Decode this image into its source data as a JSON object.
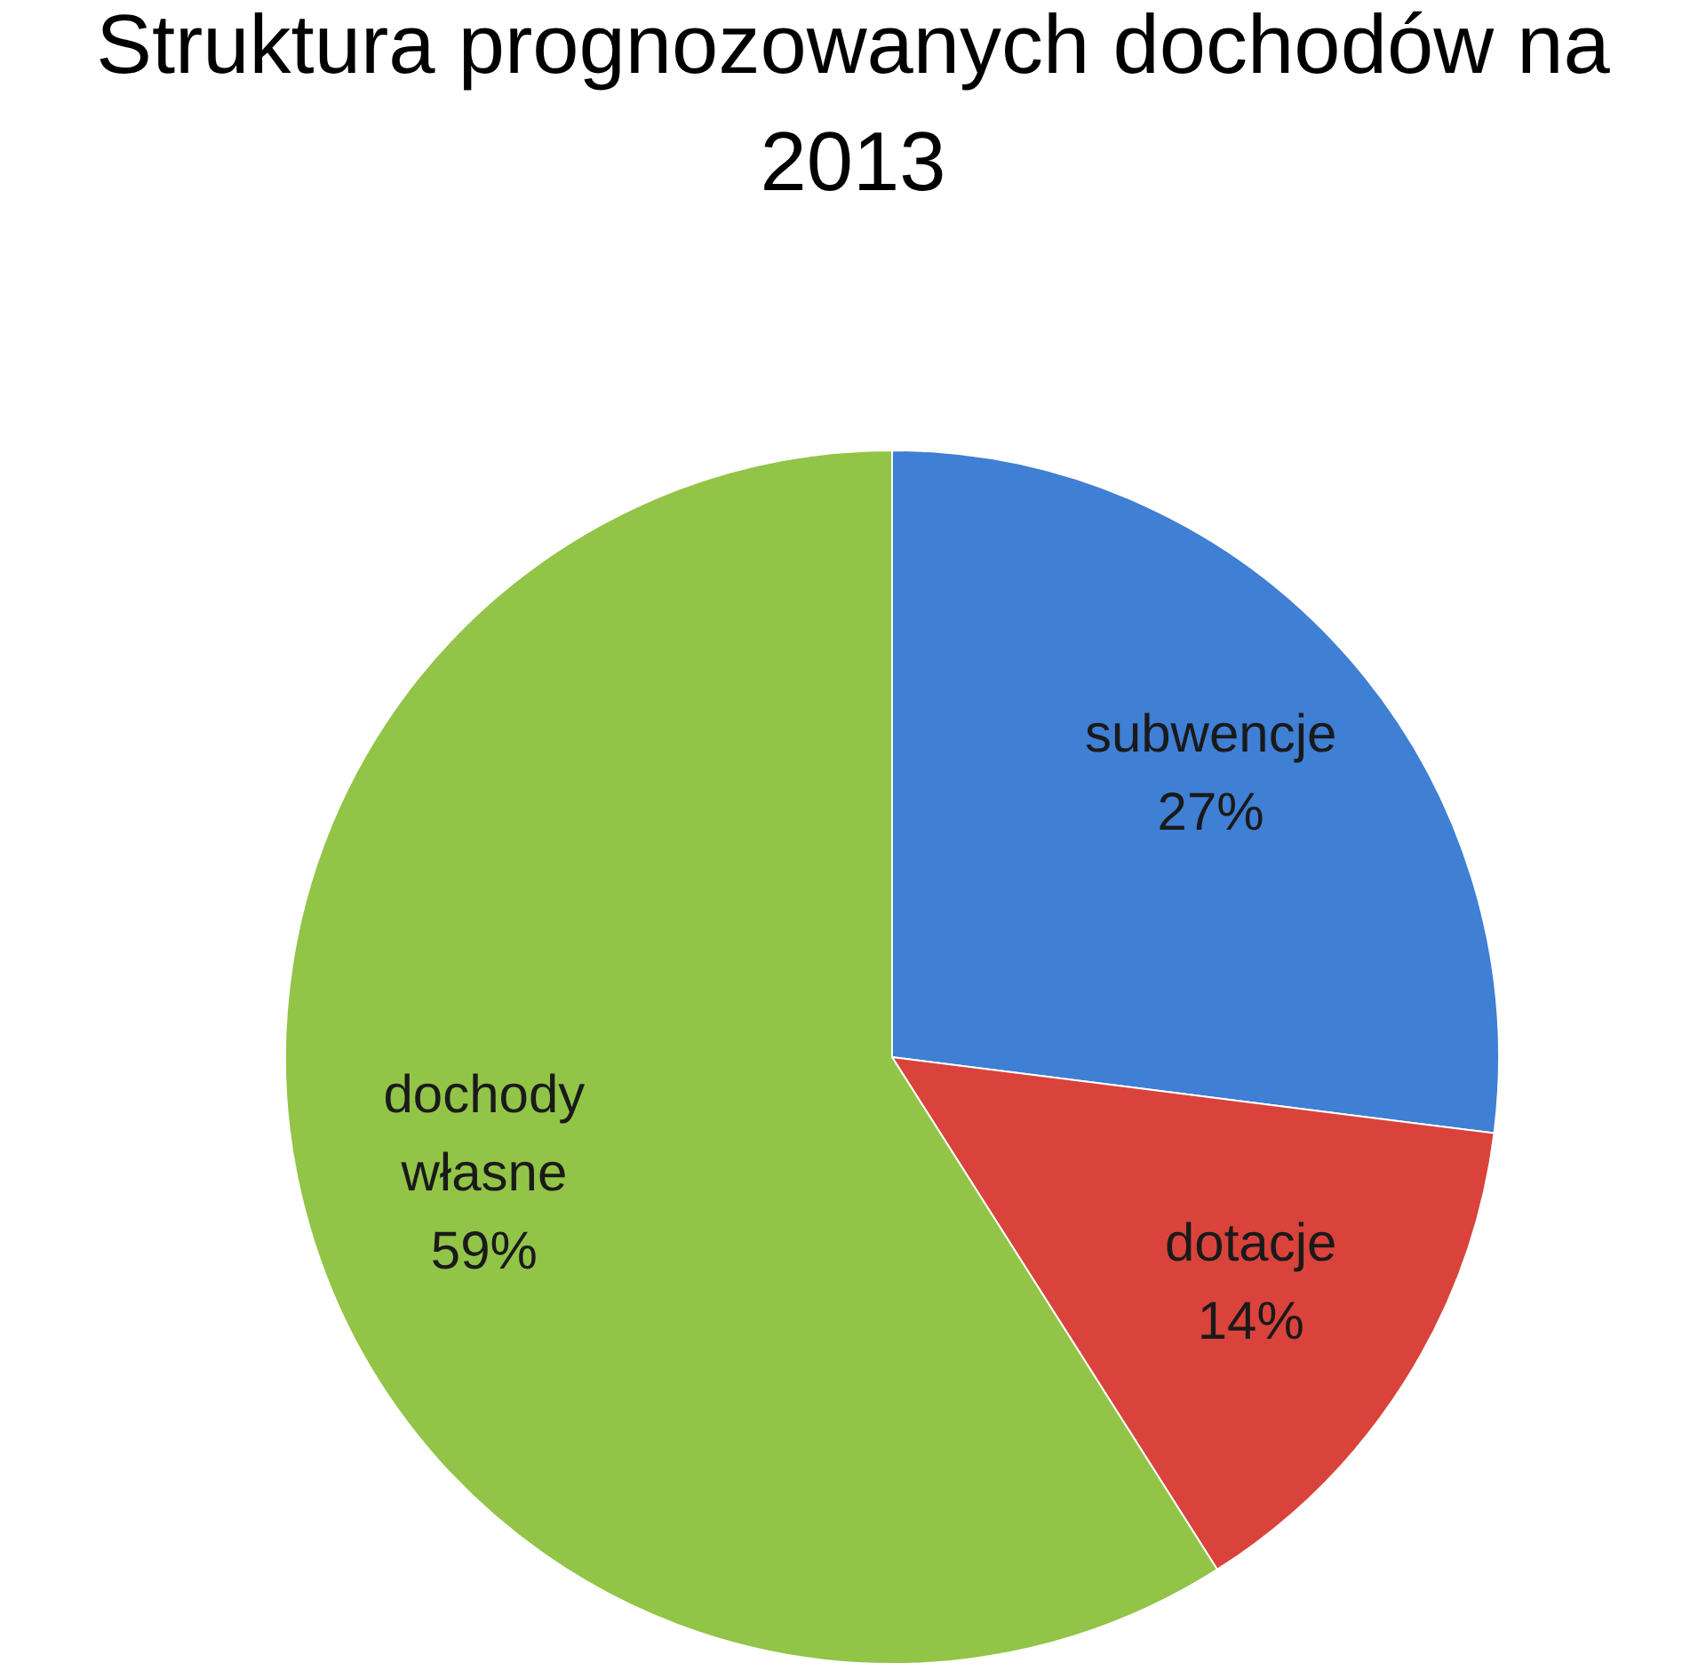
{
  "chart_data": {
    "type": "pie",
    "title": "Struktura prognozowanych dochodów na 2013",
    "categories": [
      "subwencje",
      "dotacje",
      "dochody własne"
    ],
    "values": [
      27,
      14,
      59
    ],
    "colors": [
      "#3f7fd4",
      "#d9433b",
      "#92c447"
    ],
    "value_labels": [
      "27%",
      "14%",
      "59%"
    ],
    "legend": false
  }
}
